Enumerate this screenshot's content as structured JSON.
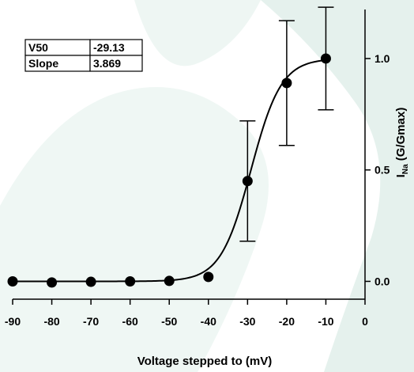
{
  "chart_data": {
    "type": "scatter",
    "x": [
      -90,
      -80,
      -70,
      -60,
      -50,
      -40,
      -30,
      -20,
      -10
    ],
    "series": [
      {
        "values": [
          0.0,
          -0.005,
          -0.002,
          0.0,
          0.002,
          0.02,
          0.45,
          0.89,
          1.0
        ],
        "error": [
          0.0,
          0.0,
          0.0,
          0.0,
          0.0,
          0.0,
          0.27,
          0.28,
          0.23
        ]
      }
    ],
    "fit": {
      "type": "boltzmann",
      "v50": -29.13,
      "slope": 3.869
    },
    "xlabel": "Voltage stepped to (mV)",
    "ylabel": {
      "main": "I",
      "sub": "Na",
      "rest": " (G/Gmax)"
    },
    "xlim": [
      -90,
      0
    ],
    "ylim": [
      -0.08,
      1.22
    ],
    "xticks": [
      "-90",
      "-80",
      "-70",
      "-60",
      "-50",
      "-40",
      "-30",
      "-20",
      "-10",
      "0"
    ],
    "xtick_values": [
      -90,
      -80,
      -70,
      -60,
      -50,
      -40,
      -30,
      -20,
      -10,
      0
    ],
    "yticks": [
      "0.0",
      "0.5",
      "1.0"
    ],
    "ytick_values": [
      0,
      0.5,
      1.0
    ],
    "yaxis_position": "right",
    "grid": false,
    "colors": {
      "marker": "#000000",
      "line": "#000000",
      "watermark": "#dfeee9"
    },
    "table": {
      "rows": [
        {
          "label": "V50",
          "value": "-29.13"
        },
        {
          "label": "Slope",
          "value": "3.869"
        }
      ]
    }
  }
}
